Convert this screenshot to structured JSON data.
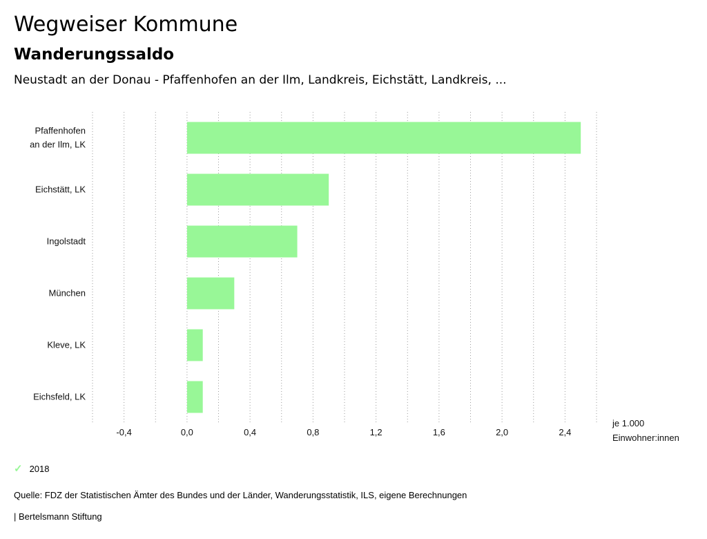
{
  "header": {
    "title": "Wegweiser Kommune",
    "subtitle": "Wanderungssaldo",
    "context": "Neustadt an der Donau - Pfaffenhofen an der Ilm, Landkreis, Eichstätt, Landkreis, ..."
  },
  "chart_data": {
    "type": "bar",
    "orientation": "horizontal",
    "categories": [
      [
        "Pfaffenhofen",
        "an der Ilm, LK"
      ],
      [
        "Eichstätt, LK"
      ],
      [
        "Ingolstadt"
      ],
      [
        "München"
      ],
      [
        "Kleve, LK"
      ],
      [
        "Eichsfeld, LK"
      ]
    ],
    "series": [
      {
        "name": "2018",
        "values": [
          2.5,
          0.9,
          0.7,
          0.3,
          0.1,
          0.1
        ]
      }
    ],
    "xlim": [
      -0.6,
      2.6
    ],
    "ticks": [
      -0.4,
      0.0,
      0.4,
      0.8,
      1.2,
      1.6,
      2.0,
      2.4
    ],
    "tick_labels": [
      "-0,4",
      "0,0",
      "0,4",
      "0,8",
      "1,2",
      "1,6",
      "2,0",
      "2,4"
    ],
    "unit_label": [
      "je 1.000",
      "Einwohner:innen"
    ],
    "grid": true,
    "bar_color": "#98f797"
  },
  "legend": {
    "label": "2018"
  },
  "footer": {
    "source": "Quelle: FDZ der Statistischen Ämter des Bundes und der Länder, Wanderungsstatistik, ILS, eigene Berechnungen",
    "brand": "| Bertelsmann Stiftung"
  }
}
